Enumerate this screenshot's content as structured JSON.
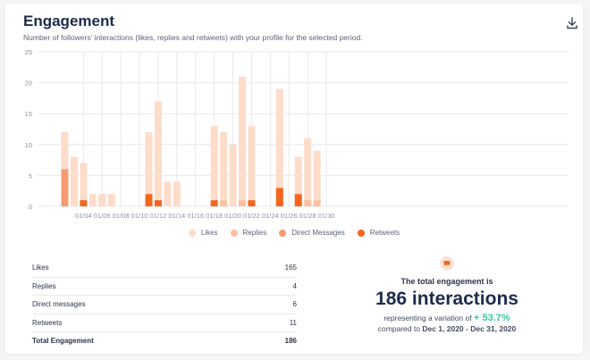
{
  "header": {
    "title": "Engagement",
    "subtitle": "Number of followers' interactions (likes, replies and retweets) with your profile for the selected period.",
    "download_icon": "download-icon"
  },
  "colors": {
    "likes": "#fddcca",
    "replies": "#fbc0a2",
    "direct_messages": "#f89a70",
    "retweets": "#f5651e",
    "grid": "#e6e9ee",
    "axis_text": "#8a93a4",
    "variation": "#38c8a8"
  },
  "chart_data": {
    "type": "bar",
    "stacked": true,
    "title": "Engagement",
    "xlabel": "",
    "ylabel": "",
    "ylim": [
      0,
      25
    ],
    "yticks": [
      0,
      5,
      10,
      15,
      20,
      25
    ],
    "days": 31,
    "xtick_labels": [
      "01/04",
      "01/06",
      "01/08",
      "01/10",
      "01/12",
      "01/14",
      "01/16",
      "01/18",
      "01/20",
      "01/22",
      "01/24",
      "01/26",
      "01/28",
      "01/30"
    ],
    "xtick_days": [
      4,
      6,
      8,
      10,
      12,
      14,
      16,
      18,
      20,
      22,
      24,
      26,
      28,
      30
    ],
    "series": [
      {
        "name": "Retweets",
        "key": "retweets",
        "values": [
          0,
          0,
          0,
          1,
          0,
          0,
          0,
          0,
          0,
          0,
          2,
          1,
          0,
          0,
          0,
          0,
          0,
          1,
          0,
          0,
          0,
          1,
          0,
          0,
          3,
          0,
          2,
          0,
          0,
          0,
          0
        ]
      },
      {
        "name": "Direct Messages",
        "key": "direct_messages",
        "values": [
          0,
          6,
          0,
          0,
          0,
          0,
          0,
          0,
          0,
          0,
          0,
          0,
          0,
          0,
          0,
          0,
          0,
          0,
          0,
          0,
          0,
          0,
          0,
          0,
          0,
          0,
          0,
          0,
          0,
          0,
          0
        ]
      },
      {
        "name": "Replies",
        "key": "replies",
        "values": [
          0,
          0,
          0,
          0,
          0,
          0,
          0,
          0,
          0,
          0,
          0,
          0,
          0,
          0,
          0,
          0,
          0,
          0,
          1,
          0,
          1,
          0,
          0,
          0,
          0,
          0,
          0,
          1,
          1,
          0,
          0
        ]
      },
      {
        "name": "Likes",
        "key": "likes",
        "values": [
          0,
          6,
          8,
          6,
          2,
          2,
          2,
          0,
          0,
          0,
          10,
          16,
          4,
          4,
          0,
          0,
          0,
          12,
          11,
          10,
          20,
          12,
          0,
          0,
          16,
          0,
          6,
          10,
          8,
          0,
          0
        ]
      }
    ],
    "legend": [
      "Likes",
      "Replies",
      "Direct Messages",
      "Retweets"
    ],
    "legend_position": "bottom-center"
  },
  "stats": {
    "rows": [
      {
        "label": "Likes",
        "value": "165"
      },
      {
        "label": "Replies",
        "value": "4"
      },
      {
        "label": "Direct messages",
        "value": "6"
      },
      {
        "label": "Retweets",
        "value": "11"
      }
    ],
    "total_label": "Total Engagement",
    "total_value": "186"
  },
  "summary": {
    "icon": "chat-bubble-icon",
    "label": "The total engagement is",
    "big": "186 interactions",
    "variation_prefix": "representing a variation of",
    "variation_value": "+ 53.7%",
    "compare_prefix": "compared to",
    "compare_range": "Dec 1, 2020 - Dec 31, 2020"
  }
}
